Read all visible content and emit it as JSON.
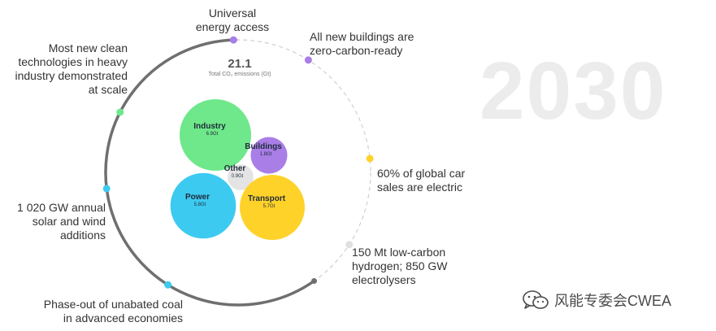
{
  "chart_data": {
    "type": "bubble",
    "title": "2030",
    "total": {
      "value": "21.1",
      "label": "Total CO₂ emissions (Gt)"
    },
    "series": [
      {
        "name": "Industry",
        "label": "6.9Gt",
        "value": 6.9,
        "color": "#6ee88a"
      },
      {
        "name": "Buildings",
        "label": "1.8Gt",
        "value": 1.8,
        "color": "#a97ee6"
      },
      {
        "name": "Other",
        "label": "0.9Gt",
        "value": 0.9,
        "color": "#e4e4e4"
      },
      {
        "name": "Power",
        "label": "5.8Gt",
        "value": 5.8,
        "color": "#3ccaf0"
      },
      {
        "name": "Transport",
        "label": "5.7Gt",
        "value": 5.7,
        "color": "#ffd22a"
      }
    ],
    "milestones": [
      {
        "lines": [
          "Universal",
          "energy access"
        ],
        "color": "#a97ee6"
      },
      {
        "lines": [
          "All new buildings are",
          "zero-carbon-ready"
        ],
        "color": "#a97ee6"
      },
      {
        "lines": [
          "60% of global car",
          "sales are electric"
        ],
        "color": "#ffd22a"
      },
      {
        "lines": [
          "150 Mt low-carbon",
          "hydrogen; 850 GW",
          "electrolysers"
        ],
        "color": "#e0e0e0"
      },
      {
        "lines": [
          "Phase-out of unabated coal",
          "in advanced economies"
        ],
        "color": "#3ccaf0"
      },
      {
        "lines": [
          "1 020 GW annual",
          "solar and wind",
          "additions"
        ],
        "color": "#3ccaf0"
      },
      {
        "lines": [
          "Most new clean",
          "technologies in heavy",
          "industry demonstrated",
          "at scale"
        ],
        "color": "#6ee88a"
      }
    ]
  },
  "watermark": {
    "text": "风能专委会CWEA",
    "icon": "wechat-icon"
  }
}
